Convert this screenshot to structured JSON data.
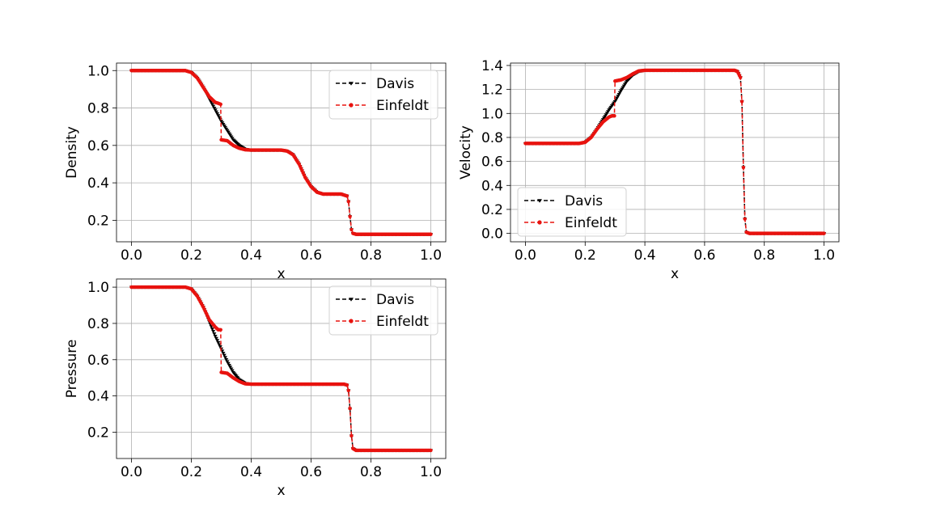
{
  "chart_data": [
    {
      "id": "density",
      "type": "line",
      "xlabel": "x",
      "ylabel": "Density",
      "xlim": [
        -0.05,
        1.05
      ],
      "ylim": [
        0.085,
        1.04
      ],
      "xticks": [
        "0.0",
        "0.2",
        "0.4",
        "0.6",
        "0.8",
        "1.0"
      ],
      "yticks": [
        "0.2",
        "0.4",
        "0.6",
        "0.8",
        "1.0"
      ],
      "grid": true,
      "legend_position": "upper right",
      "series": [
        {
          "name": "Davis",
          "color": "#000000",
          "linestyle": "dashed",
          "marker": "down-triangle",
          "x": [
            0.0,
            0.18,
            0.2,
            0.22,
            0.24,
            0.26,
            0.28,
            0.3,
            0.32,
            0.34,
            0.36,
            0.38,
            0.4,
            0.5,
            0.52,
            0.54,
            0.56,
            0.58,
            0.6,
            0.62,
            0.64,
            0.7,
            0.72,
            0.725,
            0.73,
            0.735,
            0.74,
            0.75,
            1.0
          ],
          "y": [
            1.0,
            1.0,
            0.99,
            0.96,
            0.91,
            0.85,
            0.79,
            0.73,
            0.68,
            0.63,
            0.6,
            0.58,
            0.575,
            0.575,
            0.57,
            0.55,
            0.5,
            0.43,
            0.38,
            0.35,
            0.34,
            0.34,
            0.33,
            0.3,
            0.22,
            0.15,
            0.13,
            0.125,
            0.125
          ]
        },
        {
          "name": "Einfeldt",
          "color": "#e8130f",
          "linestyle": "dashed",
          "marker": "circle",
          "x": [
            0.0,
            0.18,
            0.2,
            0.22,
            0.24,
            0.26,
            0.28,
            0.29,
            0.298,
            0.3,
            0.32,
            0.34,
            0.36,
            0.38,
            0.4,
            0.5,
            0.52,
            0.54,
            0.56,
            0.58,
            0.6,
            0.62,
            0.64,
            0.7,
            0.72,
            0.725,
            0.73,
            0.735,
            0.74,
            0.75,
            1.0
          ],
          "y": [
            1.0,
            1.0,
            0.99,
            0.96,
            0.91,
            0.86,
            0.83,
            0.825,
            0.82,
            0.63,
            0.625,
            0.6,
            0.585,
            0.577,
            0.575,
            0.575,
            0.57,
            0.55,
            0.5,
            0.43,
            0.38,
            0.35,
            0.34,
            0.34,
            0.33,
            0.3,
            0.22,
            0.15,
            0.13,
            0.125,
            0.125
          ]
        }
      ]
    },
    {
      "id": "velocity",
      "type": "line",
      "xlabel": "x",
      "ylabel": "Velocity",
      "xlim": [
        -0.05,
        1.05
      ],
      "ylim": [
        -0.07,
        1.42
      ],
      "xticks": [
        "0.0",
        "0.2",
        "0.4",
        "0.6",
        "0.8",
        "1.0"
      ],
      "yticks": [
        "0.0",
        "0.2",
        "0.4",
        "0.6",
        "0.8",
        "1.0",
        "1.2",
        "1.4"
      ],
      "grid": true,
      "legend_position": "lower left",
      "series": [
        {
          "name": "Davis",
          "color": "#000000",
          "linestyle": "dashed",
          "marker": "down-triangle",
          "x": [
            0.0,
            0.18,
            0.2,
            0.22,
            0.24,
            0.26,
            0.28,
            0.3,
            0.32,
            0.34,
            0.36,
            0.38,
            0.4,
            0.7,
            0.71,
            0.72,
            0.725,
            0.73,
            0.735,
            0.74,
            0.75,
            1.0
          ],
          "y": [
            0.75,
            0.75,
            0.76,
            0.8,
            0.87,
            0.95,
            1.03,
            1.1,
            1.19,
            1.27,
            1.32,
            1.35,
            1.36,
            1.36,
            1.35,
            1.3,
            1.1,
            0.55,
            0.12,
            0.01,
            0.0,
            0.0
          ]
        },
        {
          "name": "Einfeldt",
          "color": "#e8130f",
          "linestyle": "dashed",
          "marker": "circle",
          "x": [
            0.0,
            0.18,
            0.2,
            0.22,
            0.24,
            0.26,
            0.28,
            0.29,
            0.298,
            0.3,
            0.32,
            0.34,
            0.36,
            0.38,
            0.4,
            0.7,
            0.71,
            0.72,
            0.725,
            0.73,
            0.735,
            0.74,
            0.75,
            1.0
          ],
          "y": [
            0.75,
            0.75,
            0.76,
            0.8,
            0.87,
            0.93,
            0.97,
            0.98,
            0.98,
            1.27,
            1.28,
            1.3,
            1.33,
            1.355,
            1.36,
            1.36,
            1.35,
            1.3,
            1.1,
            0.55,
            0.12,
            0.01,
            0.0,
            0.0
          ]
        }
      ]
    },
    {
      "id": "pressure",
      "type": "line",
      "xlabel": "x",
      "ylabel": "Pressure",
      "xlim": [
        -0.05,
        1.05
      ],
      "ylim": [
        0.055,
        1.045
      ],
      "xticks": [
        "0.0",
        "0.2",
        "0.4",
        "0.6",
        "0.8",
        "1.0"
      ],
      "yticks": [
        "0.2",
        "0.4",
        "0.6",
        "0.8",
        "1.0"
      ],
      "grid": true,
      "legend_position": "upper right",
      "series": [
        {
          "name": "Davis",
          "color": "#000000",
          "linestyle": "dashed",
          "marker": "down-triangle",
          "x": [
            0.0,
            0.18,
            0.2,
            0.22,
            0.24,
            0.26,
            0.28,
            0.3,
            0.32,
            0.34,
            0.36,
            0.38,
            0.4,
            0.7,
            0.71,
            0.72,
            0.725,
            0.73,
            0.735,
            0.74,
            0.75,
            1.0
          ],
          "y": [
            1.0,
            1.0,
            0.99,
            0.95,
            0.89,
            0.81,
            0.73,
            0.66,
            0.59,
            0.53,
            0.49,
            0.47,
            0.465,
            0.465,
            0.465,
            0.46,
            0.43,
            0.33,
            0.18,
            0.11,
            0.1,
            0.1
          ]
        },
        {
          "name": "Einfeldt",
          "color": "#e8130f",
          "linestyle": "dashed",
          "marker": "circle",
          "x": [
            0.0,
            0.18,
            0.2,
            0.22,
            0.24,
            0.26,
            0.28,
            0.29,
            0.298,
            0.3,
            0.32,
            0.34,
            0.36,
            0.38,
            0.4,
            0.7,
            0.71,
            0.72,
            0.725,
            0.73,
            0.735,
            0.74,
            0.75,
            1.0
          ],
          "y": [
            1.0,
            1.0,
            0.99,
            0.95,
            0.89,
            0.82,
            0.78,
            0.765,
            0.765,
            0.53,
            0.525,
            0.5,
            0.48,
            0.467,
            0.465,
            0.465,
            0.465,
            0.46,
            0.43,
            0.33,
            0.18,
            0.11,
            0.1,
            0.1
          ]
        }
      ]
    }
  ]
}
